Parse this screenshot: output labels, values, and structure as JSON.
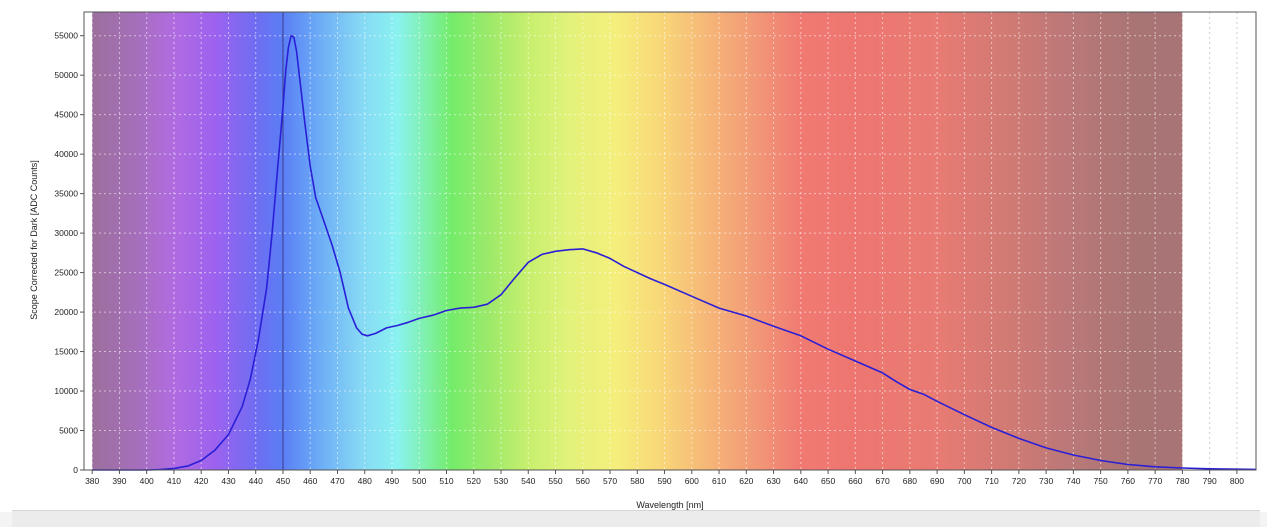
{
  "chart_data": {
    "type": "line",
    "title": "",
    "xlabel": "Wavelength [nm]",
    "ylabel": "Scope Corrected for Dark [ADC Counts]",
    "xlim": [
      377,
      807
    ],
    "ylim": [
      0,
      58000
    ],
    "x_ticks": [
      380,
      390,
      400,
      410,
      420,
      430,
      440,
      450,
      460,
      470,
      480,
      490,
      500,
      510,
      520,
      530,
      540,
      550,
      560,
      570,
      580,
      590,
      600,
      610,
      620,
      630,
      640,
      650,
      660,
      670,
      680,
      690,
      700,
      710,
      720,
      730,
      740,
      750,
      760,
      770,
      780,
      790,
      800
    ],
    "y_ticks": [
      0,
      5000,
      10000,
      15000,
      20000,
      25000,
      30000,
      35000,
      40000,
      45000,
      50000,
      55000
    ],
    "grid": true,
    "spectrum_background": {
      "from_nm": 380,
      "to_nm": 780
    },
    "cursor_nm": 450,
    "series": [
      {
        "color": "#2a1fd6",
        "x": [
          380,
          400,
          405,
          410,
          415,
          420,
          425,
          430,
          435,
          438,
          441,
          444,
          446,
          448,
          450,
          451,
          452,
          453,
          454,
          455,
          456,
          458,
          460,
          462,
          465,
          468,
          471,
          474,
          477,
          479,
          481,
          484,
          488,
          492,
          496,
          500,
          505,
          510,
          515,
          520,
          525,
          530,
          535,
          540,
          545,
          550,
          555,
          560,
          565,
          570,
          575,
          580,
          585,
          590,
          600,
          610,
          620,
          630,
          640,
          650,
          660,
          670,
          675,
          680,
          685,
          690,
          700,
          710,
          720,
          730,
          740,
          750,
          760,
          770,
          780,
          790,
          800,
          807
        ],
        "y": [
          0,
          0,
          50,
          200,
          500,
          1200,
          2500,
          4500,
          8000,
          11500,
          16500,
          23000,
          30000,
          38000,
          46000,
          50500,
          53500,
          55000,
          54800,
          53000,
          50000,
          44000,
          38500,
          34500,
          31500,
          28500,
          25000,
          20500,
          18000,
          17200,
          17000,
          17300,
          18000,
          18300,
          18700,
          19200,
          19600,
          20200,
          20500,
          20600,
          21000,
          22200,
          24300,
          26300,
          27300,
          27700,
          27900,
          28000,
          27500,
          26800,
          25800,
          25000,
          24200,
          23500,
          22000,
          20500,
          19500,
          18200,
          17000,
          15300,
          13800,
          12300,
          11200,
          10200,
          9600,
          8700,
          7000,
          5400,
          4000,
          2800,
          1900,
          1200,
          700,
          400,
          250,
          150,
          100,
          80
        ]
      }
    ]
  }
}
